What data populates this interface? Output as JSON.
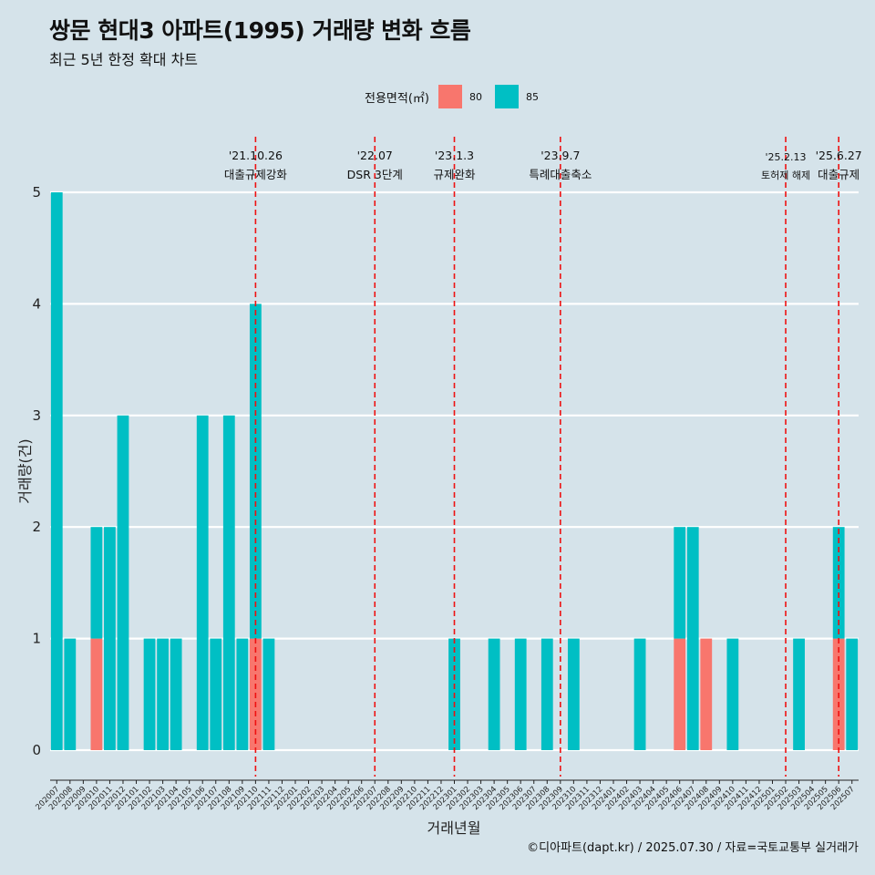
{
  "chart_data": {
    "type": "bar",
    "title": "쌍문 현대3 아파트(1995) 거래량 변화 흐름",
    "subtitle": "최근 5년 한정 확대 차트",
    "xlabel": "거래년월",
    "ylabel": "거래량(건)",
    "ylim": [
      0,
      5
    ],
    "yticks": [
      0,
      1,
      2,
      3,
      4,
      5
    ],
    "grid": true,
    "legend": {
      "title": "전용면적(㎡)",
      "position": "top"
    },
    "categories": [
      "202007",
      "202008",
      "202009",
      "202010",
      "202011",
      "202012",
      "202101",
      "202102",
      "202103",
      "202104",
      "202105",
      "202106",
      "202107",
      "202108",
      "202109",
      "202110",
      "202111",
      "202112",
      "202201",
      "202202",
      "202203",
      "202204",
      "202205",
      "202206",
      "202207",
      "202208",
      "202209",
      "202210",
      "202211",
      "202212",
      "202301",
      "202302",
      "202303",
      "202304",
      "202305",
      "202306",
      "202307",
      "202308",
      "202309",
      "202310",
      "202311",
      "202312",
      "202401",
      "202402",
      "202403",
      "202404",
      "202405",
      "202406",
      "202407",
      "202408",
      "202409",
      "202410",
      "202411",
      "202412",
      "202501",
      "202502",
      "202503",
      "202504",
      "202505",
      "202506",
      "202507"
    ],
    "series": [
      {
        "name": "80",
        "color": "#f8766d",
        "values": [
          0,
          0,
          0,
          1,
          0,
          0,
          0,
          0,
          0,
          0,
          0,
          0,
          0,
          0,
          0,
          1,
          0,
          0,
          0,
          0,
          0,
          0,
          0,
          0,
          0,
          0,
          0,
          0,
          0,
          0,
          0,
          0,
          0,
          0,
          0,
          0,
          0,
          0,
          0,
          0,
          0,
          0,
          0,
          0,
          0,
          0,
          0,
          1,
          0,
          1,
          0,
          0,
          0,
          0,
          0,
          0,
          0,
          0,
          0,
          1,
          0
        ]
      },
      {
        "name": "85",
        "color": "#00bfc4",
        "values": [
          5,
          1,
          0,
          1,
          2,
          3,
          0,
          1,
          1,
          1,
          0,
          3,
          1,
          3,
          1,
          3,
          1,
          0,
          0,
          0,
          0,
          0,
          0,
          0,
          0,
          0,
          0,
          0,
          0,
          0,
          1,
          0,
          0,
          1,
          0,
          1,
          0,
          1,
          0,
          1,
          0,
          0,
          0,
          0,
          1,
          0,
          0,
          1,
          2,
          0,
          0,
          1,
          0,
          0,
          0,
          0,
          1,
          0,
          0,
          1,
          1
        ]
      }
    ],
    "events": [
      {
        "category": "202110",
        "date": "'21.10.26",
        "label": "대출규제강화"
      },
      {
        "category": "202207",
        "date": "'22.07",
        "label": "DSR 3단계"
      },
      {
        "category": "202301",
        "date": "'23.1.3",
        "label": "규제완화"
      },
      {
        "category": "202309",
        "date": "'23.9.7",
        "label": "특례대출축소"
      },
      {
        "category": "202502",
        "date": "'25.2.13",
        "label": "토허제 해제"
      },
      {
        "category": "202506",
        "date": "'25.6.27",
        "label": "대출규제"
      }
    ],
    "caption": "©디아파트(dapt.kr) / 2025.07.30 / 자료=국토교통부 실거래가"
  }
}
